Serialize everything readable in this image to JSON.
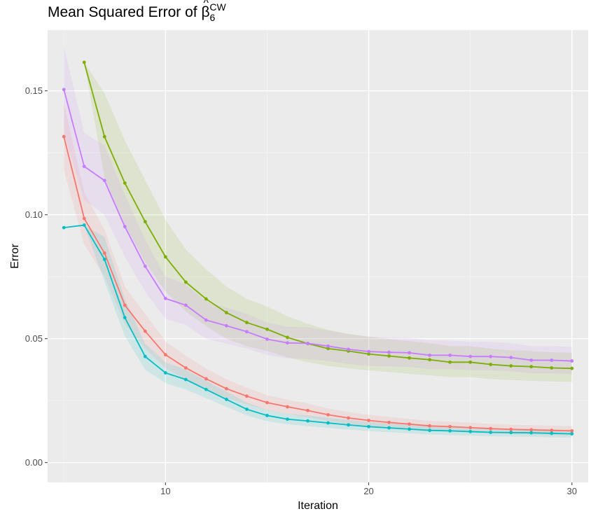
{
  "title": {
    "main": "Mean Squared Error of ",
    "symbol": "β",
    "hat": "^",
    "subscript": "6",
    "superscript": "CW"
  },
  "chart_data": {
    "type": "line",
    "xlabel": "Iteration",
    "ylabel": "Error",
    "xlim": [
      4.2,
      30.8
    ],
    "ylim": [
      -0.008,
      0.1745
    ],
    "xticks": [
      10,
      20,
      30
    ],
    "yticks": [
      0.0,
      0.05,
      0.1,
      0.15
    ],
    "ytick_labels": [
      "0.00",
      "0.05",
      "0.10",
      "0.15"
    ],
    "grid": true,
    "legend": "none",
    "series": [
      {
        "color": "#F8766D",
        "x": [
          5,
          6,
          7,
          8,
          9,
          10,
          11,
          12,
          13,
          14,
          15,
          16,
          17,
          18,
          19,
          20,
          21,
          22,
          23,
          24,
          25,
          26,
          27,
          28,
          29,
          30
        ],
        "y": [
          0.1315,
          0.0985,
          0.0845,
          0.0635,
          0.053,
          0.0435,
          0.0382,
          0.0338,
          0.0298,
          0.0268,
          0.0242,
          0.0225,
          0.021,
          0.0193,
          0.018,
          0.017,
          0.0162,
          0.0155,
          0.0148,
          0.0145,
          0.0141,
          0.0137,
          0.0134,
          0.0132,
          0.013,
          0.0128
        ],
        "lower": [
          0.118,
          0.088,
          0.075,
          0.056,
          0.046,
          0.038,
          0.0335,
          0.0295,
          0.026,
          0.0235,
          0.0212,
          0.0196,
          0.0182,
          0.0168,
          0.0156,
          0.0147,
          0.014,
          0.0134,
          0.0128,
          0.0125,
          0.0121,
          0.0118,
          0.0115,
          0.0113,
          0.0111,
          0.0109
        ],
        "upper": [
          0.145,
          0.109,
          0.094,
          0.071,
          0.06,
          0.049,
          0.043,
          0.038,
          0.0336,
          0.0302,
          0.0272,
          0.0254,
          0.0238,
          0.0218,
          0.0204,
          0.0193,
          0.0184,
          0.0176,
          0.0168,
          0.0165,
          0.0161,
          0.0156,
          0.0153,
          0.0151,
          0.0149,
          0.0147
        ]
      },
      {
        "color": "#7CAE00",
        "x": [
          6,
          7,
          8,
          9,
          10,
          11,
          12,
          13,
          14,
          15,
          16,
          17,
          18,
          19,
          20,
          21,
          22,
          23,
          24,
          25,
          26,
          27,
          28,
          29,
          30
        ],
        "y": [
          0.1615,
          0.1315,
          0.1128,
          0.0972,
          0.083,
          0.0728,
          0.066,
          0.0605,
          0.0565,
          0.0538,
          0.0505,
          0.048,
          0.046,
          0.045,
          0.0438,
          0.043,
          0.0422,
          0.0415,
          0.0405,
          0.0405,
          0.0396,
          0.039,
          0.0387,
          0.0382,
          0.038
        ],
        "lower": [
          0.1615,
          0.115,
          0.096,
          0.081,
          0.069,
          0.061,
          0.055,
          0.05,
          0.047,
          0.045,
          0.0425,
          0.0405,
          0.039,
          0.038,
          0.0372,
          0.0365,
          0.0358,
          0.0352,
          0.0345,
          0.0345,
          0.0337,
          0.0333,
          0.033,
          0.0327,
          0.0325
        ],
        "upper": [
          0.1615,
          0.149,
          0.13,
          0.114,
          0.098,
          0.086,
          0.078,
          0.071,
          0.066,
          0.063,
          0.059,
          0.056,
          0.0535,
          0.052,
          0.0508,
          0.0498,
          0.049,
          0.0482,
          0.047,
          0.047,
          0.046,
          0.0453,
          0.045,
          0.0445,
          0.0443
        ]
      },
      {
        "color": "#00BFC4",
        "x": [
          5,
          6,
          7,
          8,
          9,
          10,
          11,
          12,
          13,
          14,
          15,
          16,
          17,
          18,
          19,
          20,
          21,
          22,
          23,
          24,
          25,
          26,
          27,
          28,
          29,
          30
        ],
        "y": [
          0.0948,
          0.0958,
          0.082,
          0.0585,
          0.0428,
          0.0362,
          0.0335,
          0.0295,
          0.0255,
          0.0215,
          0.019,
          0.0175,
          0.0168,
          0.016,
          0.0152,
          0.0145,
          0.014,
          0.0135,
          0.013,
          0.0128,
          0.0125,
          0.0122,
          0.0121,
          0.012,
          0.0118,
          0.0116
        ],
        "lower": [
          0.0948,
          0.0958,
          0.073,
          0.051,
          0.0375,
          0.032,
          0.0295,
          0.026,
          0.0225,
          0.019,
          0.0167,
          0.0154,
          0.0147,
          0.014,
          0.0133,
          0.0127,
          0.0122,
          0.0118,
          0.0113,
          0.0111,
          0.0109,
          0.0106,
          0.0105,
          0.0104,
          0.0102,
          0.01
        ],
        "upper": [
          0.0948,
          0.0958,
          0.091,
          0.066,
          0.048,
          0.0405,
          0.0375,
          0.033,
          0.0287,
          0.0242,
          0.0213,
          0.0197,
          0.019,
          0.0181,
          0.0172,
          0.0164,
          0.0158,
          0.0153,
          0.0147,
          0.0145,
          0.0142,
          0.0138,
          0.0137,
          0.0136,
          0.0134,
          0.0132
        ]
      },
      {
        "color": "#C77CFF",
        "x": [
          5,
          6,
          7,
          8,
          9,
          10,
          11,
          12,
          13,
          14,
          15,
          16,
          17,
          18,
          19,
          20,
          21,
          22,
          23,
          24,
          25,
          26,
          27,
          28,
          29,
          30
        ],
        "y": [
          0.1505,
          0.1195,
          0.1138,
          0.0952,
          0.0792,
          0.0662,
          0.0635,
          0.0575,
          0.0552,
          0.0528,
          0.0498,
          0.0483,
          0.0481,
          0.047,
          0.0457,
          0.0448,
          0.0445,
          0.0443,
          0.0433,
          0.0433,
          0.0428,
          0.0428,
          0.0424,
          0.0413,
          0.0413,
          0.041
        ],
        "lower": [
          0.133,
          0.106,
          0.1,
          0.083,
          0.069,
          0.058,
          0.0555,
          0.05,
          0.048,
          0.046,
          0.0435,
          0.042,
          0.0418,
          0.041,
          0.0398,
          0.039,
          0.0388,
          0.0386,
          0.0377,
          0.0377,
          0.0373,
          0.0373,
          0.0369,
          0.036,
          0.036,
          0.0357
        ],
        "upper": [
          0.168,
          0.133,
          0.128,
          0.108,
          0.09,
          0.075,
          0.072,
          0.065,
          0.0625,
          0.06,
          0.0565,
          0.0548,
          0.0546,
          0.0533,
          0.0518,
          0.0508,
          0.0505,
          0.0503,
          0.0492,
          0.0492,
          0.0487,
          0.0487,
          0.0482,
          0.047,
          0.047,
          0.0467
        ]
      }
    ]
  }
}
